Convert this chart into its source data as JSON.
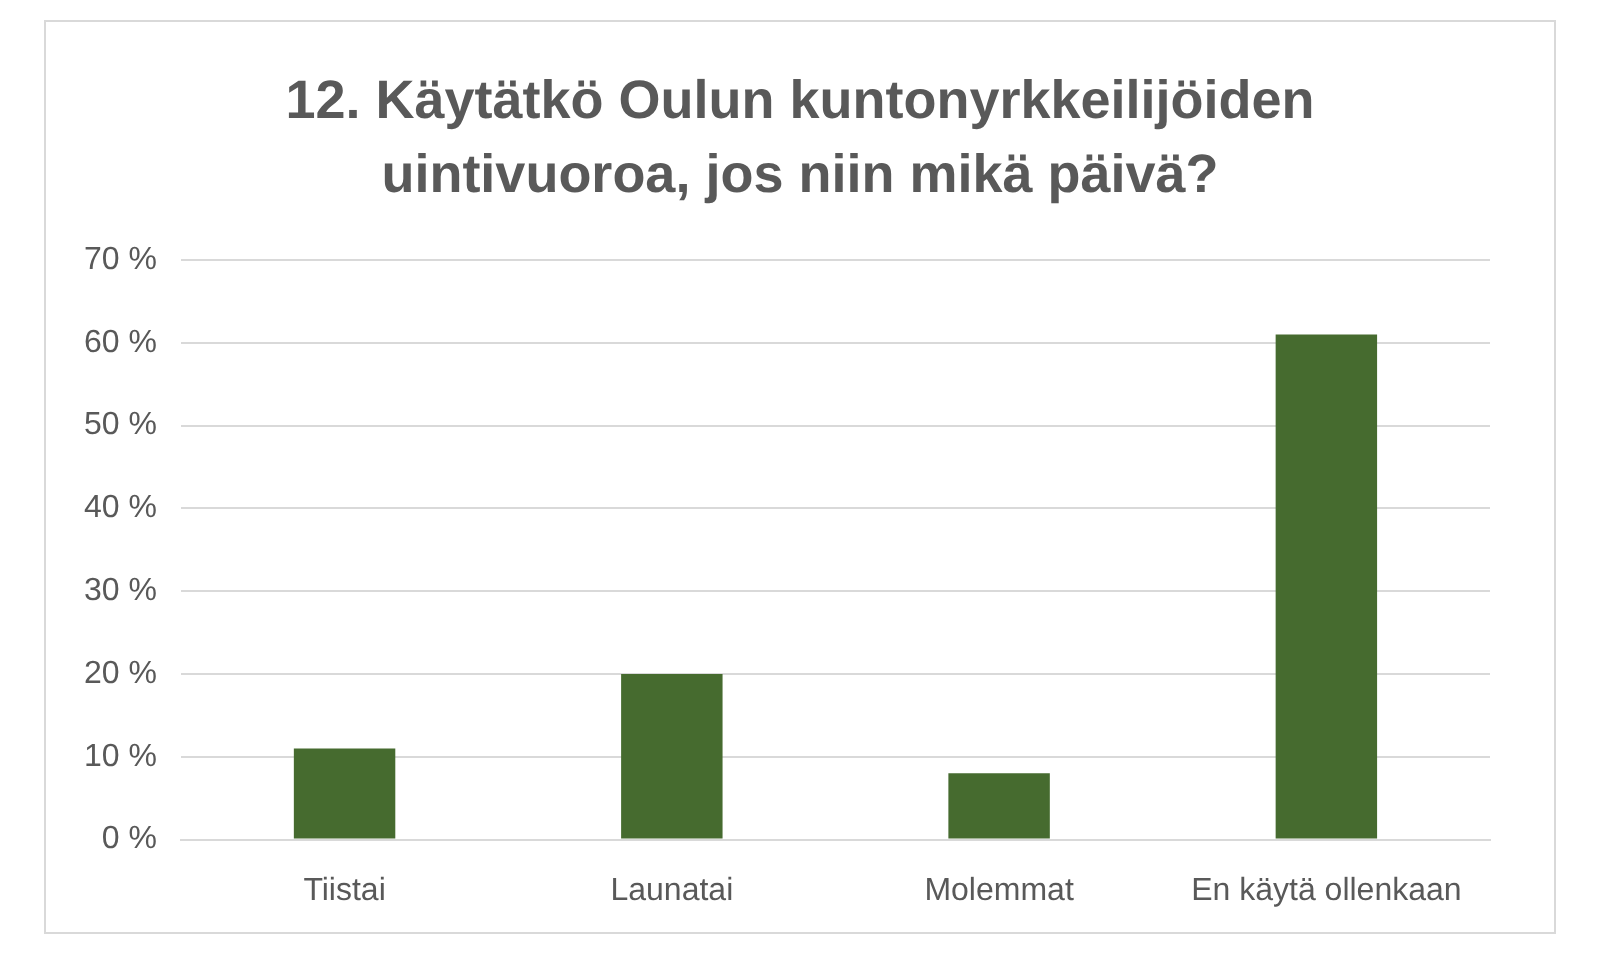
{
  "chart_data": {
    "type": "bar",
    "title": "12. Käytätkö Oulun kuntonyrkkeilijöiden uintivuoroa, jos niin mikä päivä?",
    "categories": [
      "Tiistai",
      "Launatai",
      "Molemmat",
      "En käytä ollenkaan"
    ],
    "values": [
      11,
      20,
      8,
      61
    ],
    "color": "#466b2f",
    "ylim": [
      0,
      70
    ],
    "yticks": [
      {
        "value": 0,
        "label": "0 %"
      },
      {
        "value": 10,
        "label": "10 %"
      },
      {
        "value": 20,
        "label": "20 %"
      },
      {
        "value": 30,
        "label": "30 %"
      },
      {
        "value": 40,
        "label": "40 %"
      },
      {
        "value": 50,
        "label": "50 %"
      },
      {
        "value": 60,
        "label": "60 %"
      },
      {
        "value": 70,
        "label": "70 %"
      }
    ],
    "grid": "y"
  }
}
